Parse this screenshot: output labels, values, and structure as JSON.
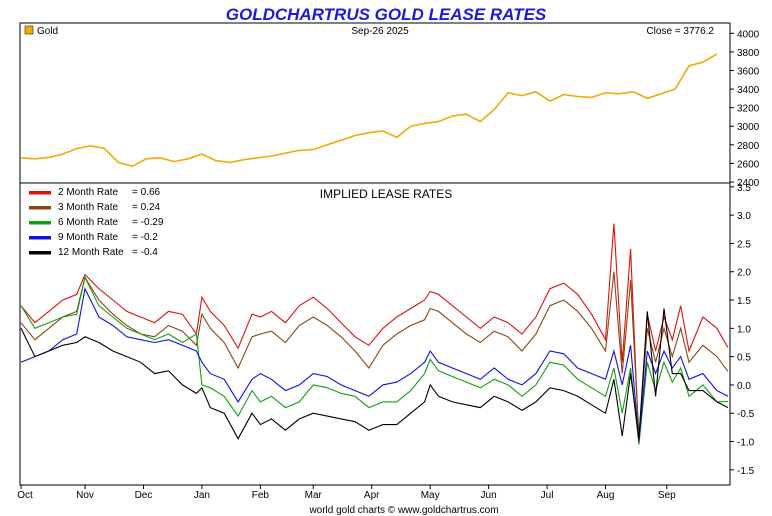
{
  "title": "GOLDCHARTRUS GOLD LEASE RATES",
  "footer": "world gold charts © www.goldchartrus.com",
  "chart_data": [
    {
      "type": "line",
      "name": "gold-price",
      "legend": "Gold",
      "date": "Sep-26  2025",
      "close_label": "Close = 3776.2",
      "color": "#f2a90a",
      "ylim": [
        2400,
        4100
      ],
      "yticks": [
        2400,
        2600,
        2800,
        3000,
        3200,
        3400,
        3600,
        3800,
        4000
      ],
      "x": [
        0,
        5,
        10,
        15,
        20,
        25,
        30,
        35,
        40,
        45,
        50,
        55,
        60,
        65,
        70,
        75,
        80,
        85,
        90,
        95,
        100,
        105,
        110,
        115,
        120,
        125,
        130,
        135,
        140,
        145,
        150,
        155,
        160,
        165,
        170,
        175,
        180,
        185,
        190,
        195,
        200,
        205,
        210,
        215,
        220,
        225,
        230,
        235,
        240,
        245,
        250
      ],
      "values": [
        2660,
        2650,
        2665,
        2700,
        2760,
        2790,
        2760,
        2610,
        2570,
        2650,
        2660,
        2620,
        2650,
        2700,
        2630,
        2610,
        2640,
        2660,
        2680,
        2710,
        2740,
        2750,
        2800,
        2850,
        2900,
        2930,
        2950,
        2880,
        3000,
        3030,
        3050,
        3110,
        3130,
        3050,
        3180,
        3360,
        3330,
        3370,
        3270,
        3340,
        3320,
        3310,
        3360,
        3350,
        3370,
        3300,
        3350,
        3400,
        3650,
        3690,
        3776
      ]
    },
    {
      "type": "line",
      "name": "implied-lease-rates",
      "title": "IMPLIED LEASE RATES",
      "ylim": [
        -1.75,
        3.55
      ],
      "yticks": [
        -1.5,
        -1.0,
        -0.5,
        0.0,
        0.5,
        1.0,
        1.5,
        2.0,
        2.5,
        3.0,
        3.5
      ],
      "ytick_labels": [
        "-1.5",
        "-1.0",
        "-0.5",
        "0.0",
        "0.5",
        "1.0",
        "1.5",
        "2.0",
        "2.5",
        "3.0",
        "3.5"
      ],
      "xlim": [
        0,
        254
      ],
      "months": [
        "Oct",
        "Nov",
        "Dec",
        "Jan",
        "Feb",
        "Mar",
        "Apr",
        "May",
        "Jun",
        "Jul",
        "Aug",
        "Sep"
      ],
      "month_positions": [
        0,
        23,
        44,
        65,
        86,
        105,
        126,
        147,
        168,
        189,
        210,
        232
      ],
      "x": [
        0,
        5,
        10,
        15,
        20,
        23,
        28,
        33,
        38,
        43,
        48,
        53,
        58,
        63,
        65,
        68,
        73,
        78,
        83,
        86,
        90,
        95,
        100,
        105,
        110,
        115,
        120,
        125,
        130,
        135,
        140,
        145,
        147,
        150,
        155,
        160,
        165,
        170,
        175,
        180,
        185,
        190,
        195,
        200,
        205,
        210,
        213,
        216,
        219,
        222,
        225,
        228,
        231,
        234,
        237,
        240,
        245,
        250,
        254
      ],
      "series": [
        {
          "name": "2 Month Rate",
          "value": "= 0.66",
          "color": "#e01010",
          "values": [
            1.4,
            1.1,
            1.3,
            1.5,
            1.6,
            1.95,
            1.7,
            1.5,
            1.3,
            1.2,
            1.1,
            1.3,
            1.25,
            0.9,
            1.55,
            1.3,
            1.05,
            0.65,
            1.25,
            1.2,
            1.3,
            1.1,
            1.4,
            1.55,
            1.35,
            1.1,
            0.85,
            0.7,
            1.0,
            1.2,
            1.35,
            1.5,
            1.65,
            1.6,
            1.4,
            1.2,
            1.0,
            1.2,
            1.1,
            0.9,
            1.2,
            1.7,
            1.8,
            1.6,
            1.25,
            0.8,
            2.85,
            0.4,
            2.4,
            -1.05,
            1.25,
            0.6,
            1.2,
            0.8,
            1.4,
            0.6,
            1.2,
            1.0,
            0.66
          ]
        },
        {
          "name": "3 Month Rate",
          "value": "= 0.24",
          "color": "#8b4513",
          "values": [
            1.1,
            0.8,
            1.0,
            1.2,
            1.3,
            1.9,
            1.5,
            1.25,
            1.05,
            0.9,
            0.85,
            1.05,
            0.95,
            0.7,
            1.25,
            1.0,
            0.75,
            0.3,
            0.85,
            0.9,
            0.95,
            0.75,
            1.05,
            1.2,
            1.05,
            0.85,
            0.6,
            0.3,
            0.7,
            0.9,
            1.05,
            1.15,
            1.35,
            1.3,
            1.1,
            0.9,
            0.75,
            0.95,
            0.85,
            0.6,
            0.9,
            1.4,
            1.5,
            1.3,
            1.0,
            0.6,
            2.0,
            0.2,
            1.85,
            -0.9,
            1.0,
            0.4,
            1.0,
            0.5,
            1.0,
            0.4,
            0.7,
            0.5,
            0.24
          ]
        },
        {
          "name": "6 Month Rate",
          "value": "= -0.29",
          "color": "#10a010",
          "values": [
            1.4,
            1.0,
            1.1,
            1.2,
            1.25,
            1.9,
            1.4,
            1.2,
            1.0,
            0.9,
            0.8,
            0.9,
            0.75,
            0.9,
            0.0,
            -0.05,
            -0.2,
            -0.55,
            -0.1,
            -0.3,
            -0.2,
            -0.4,
            -0.3,
            0.0,
            -0.05,
            -0.15,
            -0.2,
            -0.4,
            -0.3,
            -0.3,
            -0.1,
            0.2,
            0.45,
            0.25,
            0.15,
            0.05,
            -0.05,
            0.1,
            0.0,
            -0.2,
            0.0,
            0.4,
            0.35,
            0.1,
            -0.05,
            -0.2,
            0.3,
            -0.5,
            0.3,
            -1.05,
            0.4,
            -0.1,
            0.4,
            0.05,
            0.3,
            -0.2,
            0.0,
            -0.3,
            -0.29
          ]
        },
        {
          "name": "9 Month Rate",
          "value": "= -0.2",
          "color": "#1010e0",
          "values": [
            0.4,
            0.5,
            0.6,
            0.8,
            0.9,
            1.7,
            1.2,
            1.05,
            0.85,
            0.8,
            0.75,
            0.8,
            0.7,
            0.6,
            0.4,
            0.2,
            0.1,
            -0.3,
            0.1,
            0.2,
            0.1,
            -0.1,
            0.0,
            0.2,
            0.15,
            0.0,
            -0.1,
            -0.2,
            0.0,
            0.05,
            0.2,
            0.4,
            0.6,
            0.4,
            0.3,
            0.2,
            0.1,
            0.3,
            0.1,
            0.0,
            0.2,
            0.6,
            0.55,
            0.3,
            0.2,
            0.1,
            0.6,
            0.0,
            0.7,
            -1.0,
            0.6,
            0.2,
            0.6,
            0.3,
            0.5,
            0.1,
            0.2,
            -0.1,
            -0.2
          ]
        },
        {
          "name": "12 Month Rate",
          "value": "= -0.4",
          "color": "#000000",
          "values": [
            1.0,
            0.5,
            0.6,
            0.7,
            0.75,
            0.85,
            0.75,
            0.6,
            0.5,
            0.4,
            0.2,
            0.25,
            0.0,
            -0.15,
            -0.05,
            -0.4,
            -0.5,
            -0.95,
            -0.5,
            -0.7,
            -0.6,
            -0.8,
            -0.6,
            -0.5,
            -0.55,
            -0.6,
            -0.65,
            -0.8,
            -0.7,
            -0.7,
            -0.5,
            -0.3,
            0.0,
            -0.2,
            -0.3,
            -0.35,
            -0.4,
            -0.2,
            -0.3,
            -0.45,
            -0.3,
            -0.05,
            -0.1,
            -0.2,
            -0.35,
            -0.5,
            0.1,
            -0.9,
            0.2,
            -0.95,
            1.3,
            -0.2,
            1.35,
            0.2,
            0.2,
            -0.1,
            -0.1,
            -0.3,
            -0.4
          ]
        }
      ]
    }
  ]
}
